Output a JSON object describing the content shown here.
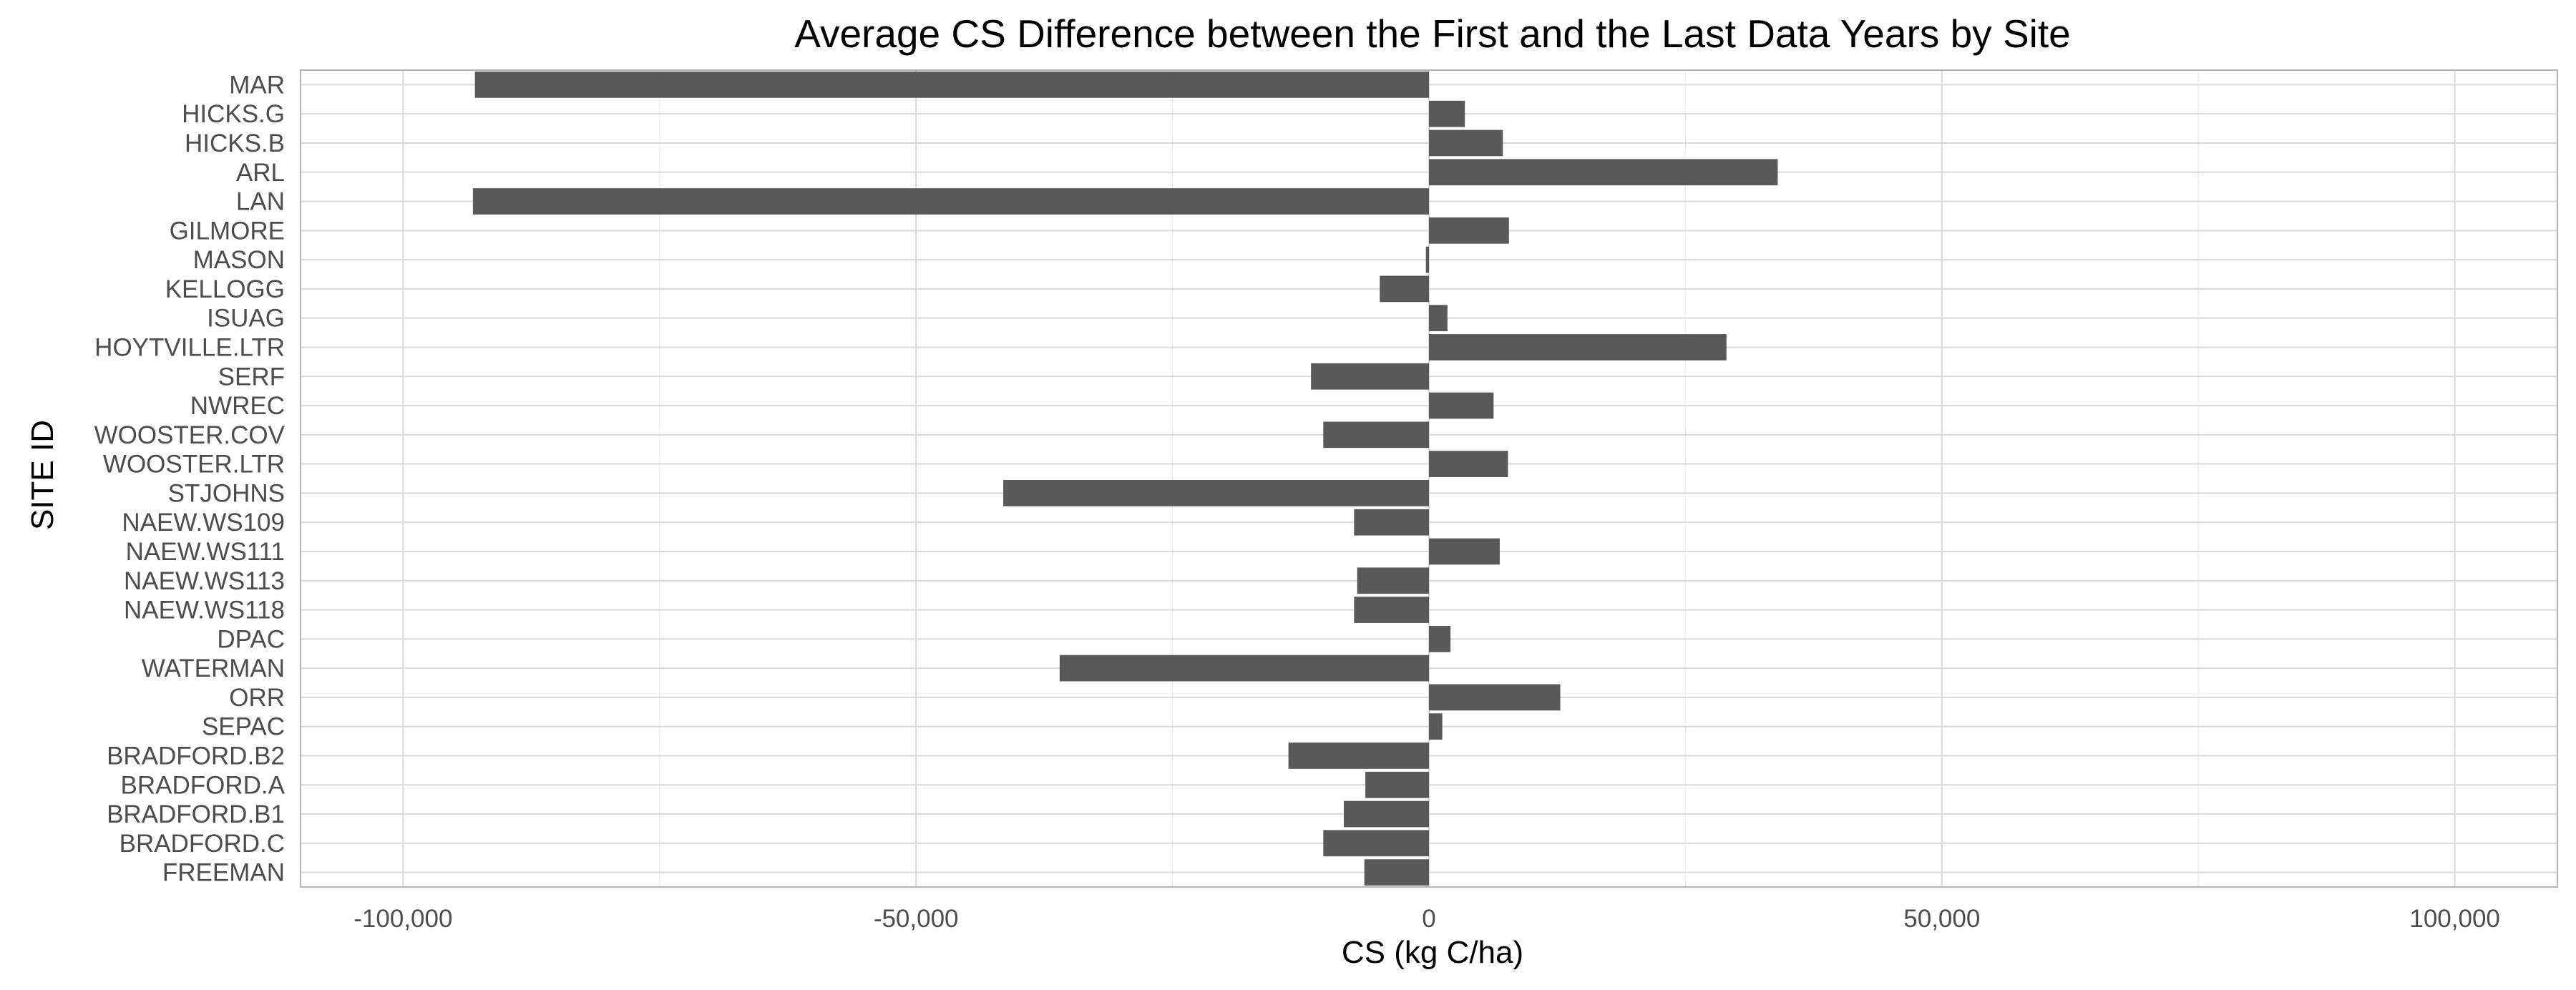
{
  "chart_data": {
    "type": "bar",
    "orientation": "horizontal",
    "title": "Average CS Difference between the First and the Last Data Years by Site",
    "xlabel": "CS (kg C/ha)",
    "ylabel": "SITE ID",
    "xlim": [
      -110000,
      110000
    ],
    "x_ticks": [
      -100000,
      -50000,
      0,
      50000,
      100000
    ],
    "x_tick_labels": [
      "-100,000",
      "-50,000",
      "0",
      "50,000",
      "100,000"
    ],
    "grid": true,
    "legend": "none",
    "bar_color": "#595959",
    "categories": [
      "MAR",
      "HICKS.G",
      "HICKS.B",
      "ARL",
      "LAN",
      "GILMORE",
      "MASON",
      "KELLOGG",
      "ISUAG",
      "HOYTVILLE.LTR",
      "SERF",
      "NWREC",
      "WOOSTER.COV",
      "WOOSTER.LTR",
      "STJOHNS",
      "NAEW.WS109",
      "NAEW.WS111",
      "NAEW.WS113",
      "NAEW.WS118",
      "DPAC",
      "WATERMAN",
      "ORR",
      "SEPAC",
      "BRADFORD.B2",
      "BRADFORD.A",
      "BRADFORD.B1",
      "BRADFORD.C",
      "FREEMAN"
    ],
    "values": [
      -93000,
      3500,
      7200,
      34000,
      -93200,
      7800,
      -300,
      -4800,
      1800,
      29000,
      -11500,
      6300,
      -10300,
      7700,
      -41500,
      -7300,
      6900,
      -7000,
      -7300,
      2100,
      -36000,
      12800,
      1300,
      -13700,
      -6200,
      -8300,
      -10300,
      -6300
    ]
  }
}
